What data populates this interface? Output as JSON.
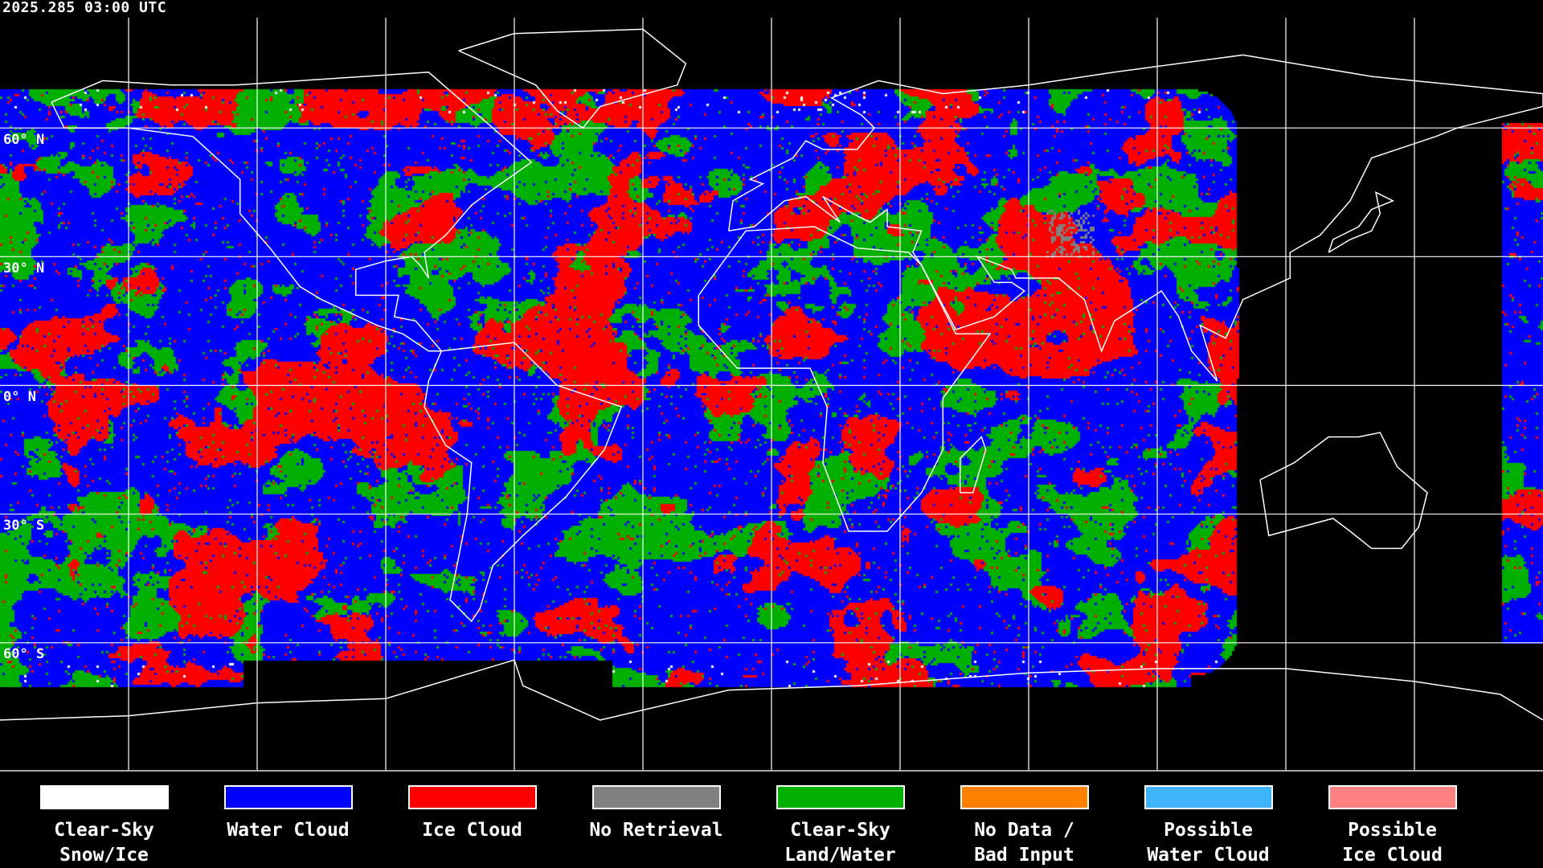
{
  "timestamp": "2025.285 03:00 UTC",
  "map": {
    "projection": "equirectangular",
    "lat_gridlines": [
      60,
      30,
      0,
      -30,
      -60
    ],
    "lon_gridlines": [
      -150,
      -120,
      -90,
      -60,
      -30,
      0,
      30,
      60,
      90,
      120,
      150
    ],
    "lat_labels": [
      "60° N",
      "30° N",
      "0° N",
      "30° S",
      "60° S"
    ],
    "gridline_color": "#ffffff",
    "coastline_color": "#ffffff"
  },
  "legend": [
    {
      "line1": "Clear-Sky",
      "line2": "Snow/Ice",
      "color": "#ffffff"
    },
    {
      "line1": "Water Cloud",
      "line2": "",
      "color": "#0000ff"
    },
    {
      "line1": "Ice Cloud",
      "line2": "",
      "color": "#ff0000"
    },
    {
      "line1": "No Retrieval",
      "line2": "",
      "color": "#808080"
    },
    {
      "line1": "Clear-Sky",
      "line2": "Land/Water",
      "color": "#00b000"
    },
    {
      "line1": "No Data /",
      "line2": "Bad Input",
      "color": "#ff8000"
    },
    {
      "line1": "Possible",
      "line2": "Water Cloud",
      "color": "#40b4ff"
    },
    {
      "line1": "Possible",
      "line2": "Ice Cloud",
      "color": "#ff8080"
    }
  ]
}
